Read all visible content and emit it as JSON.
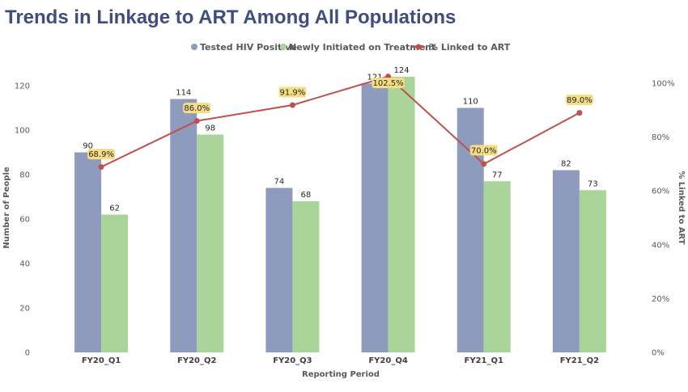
{
  "chart_data": {
    "type": "bar",
    "title": "Trends in Linkage to ART Among All Populations",
    "xlabel": "Reporting Period",
    "ylabel": "Number of People",
    "y2label": "% Linked to ART",
    "categories": [
      "FY20_Q1",
      "FY20_Q2",
      "FY20_Q3",
      "FY20_Q4",
      "FY21_Q1",
      "FY21_Q2"
    ],
    "series": [
      {
        "name": "Tested HIV Positive",
        "kind": "bar",
        "values": [
          90,
          114,
          74,
          121,
          110,
          82
        ],
        "color": "#8f9bbc"
      },
      {
        "name": "Newly Initiated on Treatment",
        "kind": "bar",
        "values": [
          62,
          98,
          68,
          124,
          77,
          73
        ],
        "color": "#a9d59b"
      },
      {
        "name": "% Linked to ART",
        "kind": "line",
        "axis": "secondary",
        "values": [
          68.9,
          86.0,
          91.9,
          102.5,
          70.0,
          89.0
        ],
        "labels": [
          "68.9%",
          "86.0%",
          "91.9%",
          "102.5%",
          "70.0%",
          "89.0%"
        ],
        "color": "#c0504d",
        "label_bg": "#f5dd84"
      }
    ],
    "ylim": [
      0,
      120
    ],
    "yticks": [
      "0",
      "20",
      "40",
      "60",
      "80",
      "100",
      "120"
    ],
    "y2lim": [
      0,
      100
    ],
    "y2ticks": [
      "0%",
      "20%",
      "40%",
      "60%",
      "80%",
      "100%"
    ],
    "legend_position": "top",
    "grid": false
  }
}
